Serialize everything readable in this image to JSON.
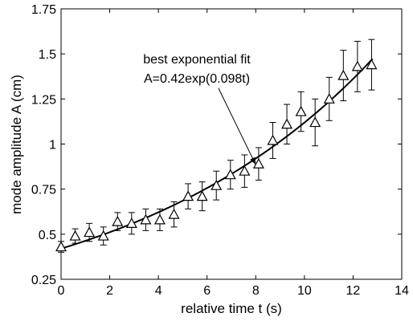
{
  "chart_data": {
    "type": "scatter",
    "xlabel": "relative time t (s)",
    "ylabel": "mode amplitude A (cm)",
    "xlim": [
      0,
      14
    ],
    "ylim": [
      0.25,
      1.75
    ],
    "xticks": [
      "0",
      "2",
      "4",
      "6",
      "8",
      "10",
      "12",
      "14"
    ],
    "yticks": [
      "0.25",
      "0.5",
      "0.75",
      "1",
      "1.25",
      "1.5",
      "1.75"
    ],
    "grid": false,
    "marker": "triangle",
    "color": "#000000",
    "series": [
      {
        "x": [
          0,
          0.58,
          1.16,
          1.74,
          2.32,
          2.9,
          3.48,
          4.06,
          4.64,
          5.22,
          5.8,
          6.38,
          6.96,
          7.54,
          8.12,
          8.7,
          9.28,
          9.86,
          10.44,
          11.02,
          11.6,
          12.18,
          12.76
        ],
        "y": [
          0.43,
          0.49,
          0.51,
          0.49,
          0.57,
          0.56,
          0.58,
          0.58,
          0.61,
          0.71,
          0.71,
          0.77,
          0.83,
          0.85,
          0.89,
          1.02,
          1.11,
          1.18,
          1.12,
          1.25,
          1.38,
          1.43,
          1.44
        ],
        "err": [
          0.03,
          0.04,
          0.05,
          0.05,
          0.05,
          0.06,
          0.06,
          0.06,
          0.07,
          0.07,
          0.08,
          0.08,
          0.08,
          0.09,
          0.09,
          0.1,
          0.11,
          0.11,
          0.13,
          0.12,
          0.14,
          0.14,
          0.14
        ]
      }
    ],
    "fit": {
      "A0": 0.42,
      "k": 0.098,
      "t_range": [
        0,
        12.8
      ]
    },
    "annotation": {
      "lines": [
        "best exponential fit",
        "A=0.42exp(0.098t)"
      ],
      "points_to": [
        8.0,
        0.885
      ]
    }
  }
}
